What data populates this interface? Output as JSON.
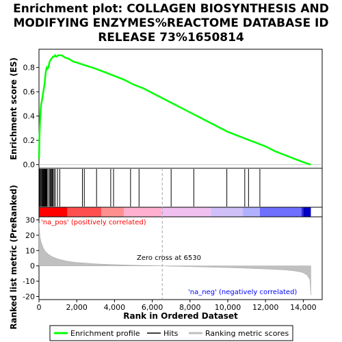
{
  "chart_data": {
    "type": "line",
    "title_lines": [
      "Enrichment plot: COLLAGEN BIOSYNTHESIS AND",
      "MODIFYING ENZYMES%REACTOME DATABASE ID",
      "RELEASE 73%1650814"
    ],
    "xlabel": "Rank in Ordered Dataset",
    "ylabel_top": "Enrichment score (ES)",
    "ylabel_bottom": "Ranked list metric (PreRanked)",
    "xlim": [
      0,
      15000
    ],
    "x_ticks": [
      0,
      2000,
      4000,
      6000,
      8000,
      10000,
      12000,
      14000
    ],
    "x_tick_labels": [
      "0",
      "2,000",
      "4,000",
      "6,000",
      "8,000",
      "10,000",
      "12,000",
      "14,000"
    ],
    "es_ylim": [
      -0.03,
      0.95
    ],
    "es_ticks": [
      0.0,
      0.2,
      0.4,
      0.6,
      0.8
    ],
    "es_tick_labels": [
      "0.0",
      "0.2",
      "0.4",
      "0.6",
      "0.8"
    ],
    "metric_ylim": [
      -22,
      32
    ],
    "metric_ticks": [
      -20,
      -10,
      0,
      10,
      20,
      30
    ],
    "metric_tick_labels": [
      "-20",
      "-10",
      "0",
      "10",
      "20",
      "30"
    ],
    "enrichment_curve": {
      "color": "#00ff00",
      "x": [
        0,
        30,
        60,
        90,
        120,
        150,
        180,
        210,
        240,
        270,
        300,
        330,
        360,
        390,
        420,
        450,
        500,
        550,
        600,
        650,
        700,
        750,
        800,
        850,
        900,
        950,
        1000,
        1050,
        1100,
        1200,
        1400,
        1600,
        1800,
        2000,
        2200,
        2400,
        2600,
        2800,
        3000,
        3500,
        4000,
        4500,
        5000,
        5500,
        6000,
        6500,
        7000,
        7500,
        8000,
        8500,
        9000,
        9500,
        10000,
        10500,
        11000,
        11500,
        12000,
        12500,
        13000,
        13500,
        14000,
        14400
      ],
      "y": [
        0.05,
        0.25,
        0.38,
        0.45,
        0.5,
        0.52,
        0.55,
        0.58,
        0.61,
        0.64,
        0.67,
        0.72,
        0.76,
        0.79,
        0.8,
        0.79,
        0.8,
        0.84,
        0.86,
        0.87,
        0.88,
        0.89,
        0.89,
        0.9,
        0.89,
        0.89,
        0.9,
        0.9,
        0.9,
        0.9,
        0.88,
        0.87,
        0.85,
        0.84,
        0.83,
        0.82,
        0.81,
        0.8,
        0.79,
        0.76,
        0.73,
        0.7,
        0.66,
        0.63,
        0.59,
        0.55,
        0.51,
        0.47,
        0.43,
        0.39,
        0.35,
        0.31,
        0.27,
        0.24,
        0.21,
        0.18,
        0.15,
        0.11,
        0.08,
        0.05,
        0.02,
        0.0
      ]
    },
    "hits": [
      20,
      60,
      100,
      140,
      180,
      210,
      240,
      270,
      300,
      330,
      360,
      380,
      410,
      440,
      520,
      580,
      620,
      660,
      700,
      740,
      800,
      860,
      980,
      1100,
      2300,
      2400,
      3050,
      3800,
      3950,
      4850,
      5300,
      7000,
      8200,
      9950,
      10900,
      11100,
      11700
    ],
    "ranked_metric": {
      "x": [
        0,
        50,
        100,
        200,
        300,
        500,
        700,
        1000,
        1500,
        2000,
        3000,
        4000,
        5000,
        6000,
        6530,
        7000,
        8000,
        9000,
        10000,
        11000,
        12000,
        13000,
        13500,
        13800,
        14000,
        14200,
        14350,
        14400
      ],
      "y": [
        28,
        19,
        16,
        12.5,
        10,
        7.5,
        6,
        4.5,
        3,
        2.2,
        1.3,
        0.8,
        0.4,
        0.15,
        0,
        -0.2,
        -0.5,
        -0.8,
        -1.1,
        -1.5,
        -2,
        -2.6,
        -3.2,
        -3.8,
        -4.5,
        -6,
        -9,
        -19
      ]
    },
    "zero_cross_label": "Zero cross at 6530",
    "zero_cross": 6530,
    "pos_label": "'na_pos' (positively correlated)",
    "neg_label": "'na_neg' (negatively correlated)",
    "legend": {
      "placement": "bottom",
      "items": [
        {
          "label": "Enrichment profile",
          "color": "#00ff00"
        },
        {
          "label": "Hits",
          "color": "#000000"
        },
        {
          "label": "Ranking metric scores",
          "color": "#c0c0c0"
        }
      ]
    },
    "heatmap_colors": [
      "#ff0000",
      "#ff5050",
      "#ff9090",
      "#ffb0d0",
      "#f0c0f0",
      "#d0c0f8",
      "#b0b0ff",
      "#7070ff",
      "#3030e0",
      "#0000c0"
    ]
  }
}
